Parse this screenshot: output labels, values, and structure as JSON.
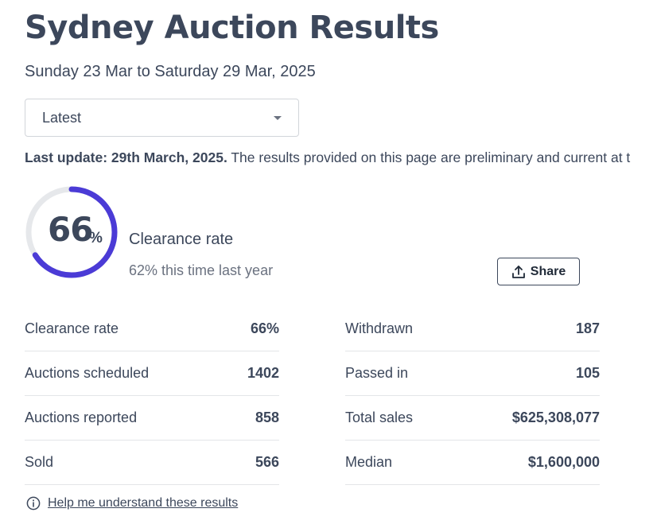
{
  "page": {
    "title": "Sydney Auction Results",
    "date_range": "Sunday 23 Mar to Saturday 29 Mar, 2025"
  },
  "filter": {
    "selected": "Latest"
  },
  "update": {
    "label": "Last update: 29th March, 2025.",
    "text": " The results provided on this page are preliminary and current at t"
  },
  "summary": {
    "clearance_value": "66",
    "clearance_unit": "%",
    "clearance_fraction": 0.66,
    "label": "Clearance rate",
    "last_year": "62% this time last year",
    "ring_color": "#4b3bd6",
    "ring_track_color": "#e6e8eb"
  },
  "share": {
    "label": "Share",
    "icon": "share-upload-icon"
  },
  "stats": {
    "left": [
      {
        "label": "Clearance rate",
        "value": "66%"
      },
      {
        "label": "Auctions scheduled",
        "value": "1402"
      },
      {
        "label": "Auctions reported",
        "value": "858"
      },
      {
        "label": "Sold",
        "value": "566"
      }
    ],
    "right": [
      {
        "label": "Withdrawn",
        "value": "187"
      },
      {
        "label": "Passed in",
        "value": "105"
      },
      {
        "label": "Total sales",
        "value": "$625,308,077"
      },
      {
        "label": "Median",
        "value": "$1,600,000"
      }
    ]
  },
  "help": {
    "label": "Help me understand these results",
    "icon": "info-icon"
  }
}
